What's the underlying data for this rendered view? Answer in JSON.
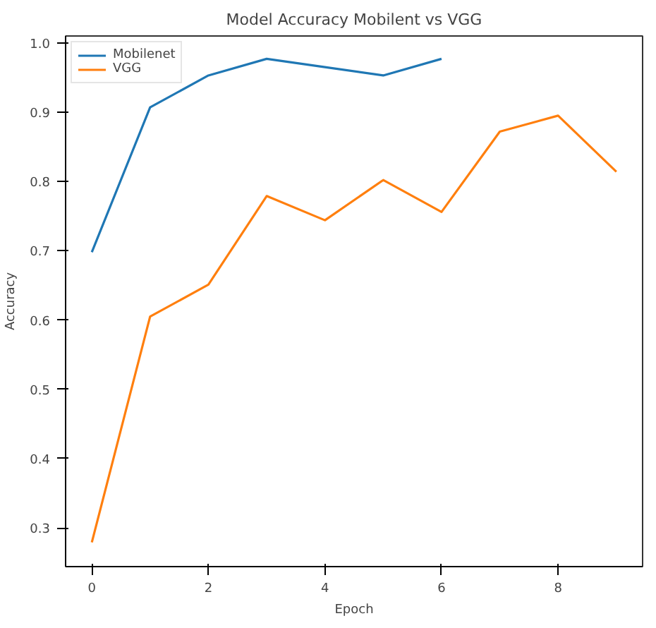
{
  "chart_data": {
    "type": "line",
    "title": "Model Accuracy Mobilent vs VGG",
    "xlabel": "Epoch",
    "ylabel": "Accuracy",
    "series": [
      {
        "name": "Mobilenet",
        "color": "#1f77b4",
        "x": [
          0,
          1,
          2,
          3,
          4,
          5,
          6
        ],
        "values": [
          0.698,
          0.907,
          0.953,
          0.977,
          0.965,
          0.953,
          0.977
        ]
      },
      {
        "name": "VGG",
        "color": "#ff7f0e",
        "x": [
          0,
          1,
          2,
          3,
          4,
          5,
          6,
          7,
          8,
          9
        ],
        "values": [
          0.279,
          0.605,
          0.651,
          0.779,
          0.744,
          0.802,
          0.756,
          0.872,
          0.895,
          0.814
        ]
      }
    ],
    "xlim": [
      -0.45,
      9.45
    ],
    "ylim": [
      0.244,
      1.01
    ],
    "xticks": [
      0,
      2,
      4,
      6,
      8
    ],
    "yticks": [
      {
        "value": 0.3,
        "label": "0.3"
      },
      {
        "value": 0.4,
        "label": "0.4"
      },
      {
        "value": 0.5,
        "label": "0.5"
      },
      {
        "value": 0.6,
        "label": "0.6"
      },
      {
        "value": 0.7,
        "label": "0.7"
      },
      {
        "value": 0.8,
        "label": "0.8"
      },
      {
        "value": 0.9,
        "label": "0.9"
      },
      {
        "value": 1.0,
        "label": "1.0"
      }
    ],
    "grid": false,
    "legend": "top left",
    "line_style": "solid",
    "marker": "none"
  }
}
